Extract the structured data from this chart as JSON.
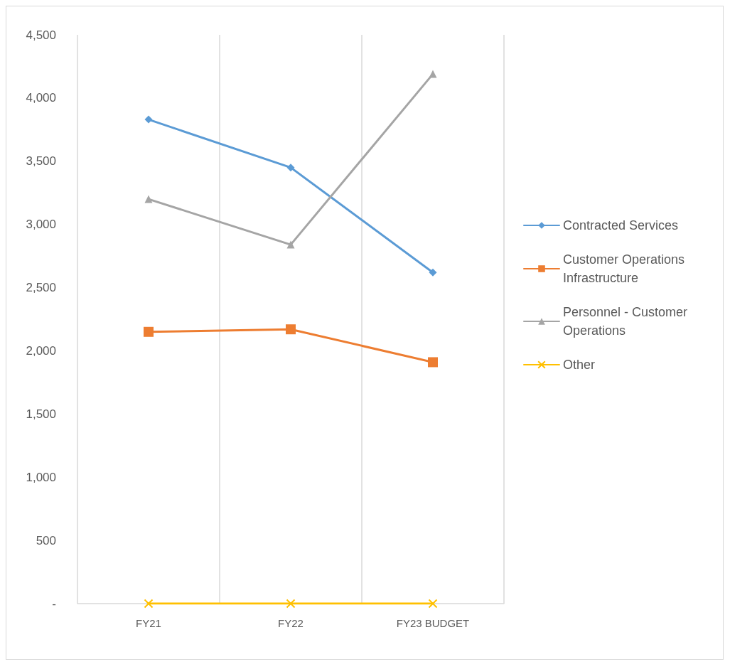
{
  "chart_data": {
    "type": "line",
    "categories": [
      "FY21",
      "FY22",
      "FY23 BUDGET"
    ],
    "series": [
      {
        "name": "Contracted Services",
        "color": "#5b9bd5",
        "marker": "diamond",
        "values": [
          3830,
          3450,
          2620
        ]
      },
      {
        "name": "Customer Operations Infrastructure",
        "color": "#ed7d31",
        "marker": "square",
        "values": [
          2150,
          2170,
          1910
        ]
      },
      {
        "name": "Personnel - Customer Operations",
        "color": "#a5a5a5",
        "marker": "triangle",
        "values": [
          3200,
          2840,
          4190
        ]
      },
      {
        "name": "Other",
        "color": "#ffc000",
        "marker": "cross",
        "values": [
          0,
          0,
          0
        ]
      }
    ],
    "ylim": [
      0,
      4500
    ],
    "yticks": [
      {
        "value": 0,
        "label": "-"
      },
      {
        "value": 500,
        "label": "500"
      },
      {
        "value": 1000,
        "label": "1,000"
      },
      {
        "value": 1500,
        "label": "1,500"
      },
      {
        "value": 2000,
        "label": "2,000"
      },
      {
        "value": 2500,
        "label": "2,500"
      },
      {
        "value": 3000,
        "label": "3,000"
      },
      {
        "value": 3500,
        "label": "3,500"
      },
      {
        "value": 4000,
        "label": "4,000"
      },
      {
        "value": 4500,
        "label": "4,500"
      }
    ],
    "grid": "x",
    "legend": "right",
    "line_style": "solid"
  }
}
